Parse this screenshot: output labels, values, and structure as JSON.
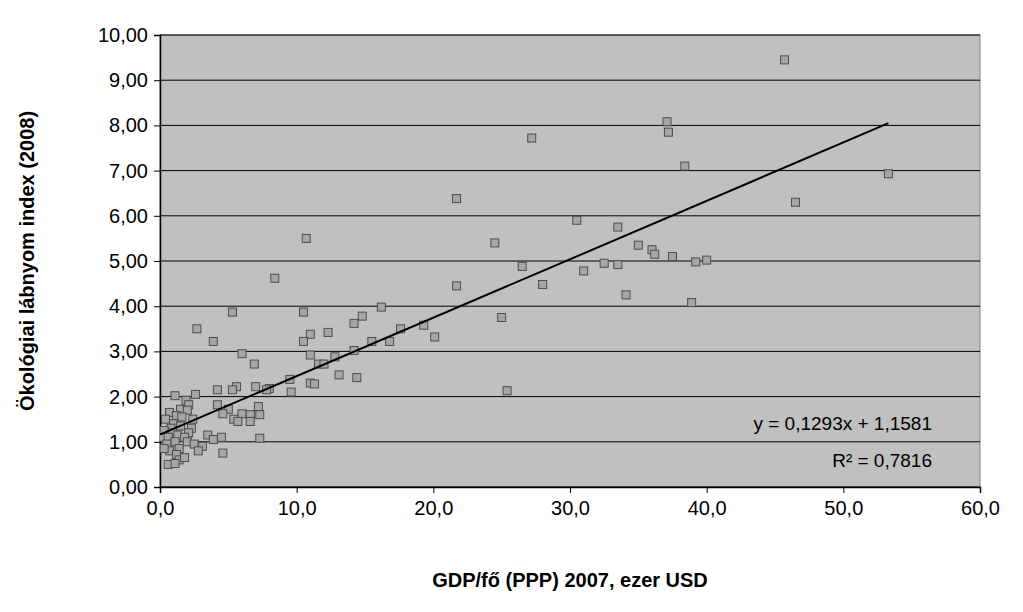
{
  "chart_data": {
    "type": "scatter",
    "x_label": "GDP/fő (PPP) 2007, ezer USD",
    "y_label": "Ökológiai lábnyom index (2008)",
    "annotations": [
      "y = 0,1293x + 1,1581",
      "R² = 0,7816"
    ],
    "xlim": [
      0,
      60
    ],
    "ylim": [
      0,
      10
    ],
    "xticks": [
      {
        "value": 0,
        "label": "0,0"
      },
      {
        "value": 10,
        "label": "10,0"
      },
      {
        "value": 20,
        "label": "20,0"
      },
      {
        "value": 30,
        "label": "30,0"
      },
      {
        "value": 40,
        "label": "40,0"
      },
      {
        "value": 50,
        "label": "50,0"
      },
      {
        "value": 60,
        "label": "60,0"
      }
    ],
    "yticks": [
      {
        "value": 0,
        "label": "0,00"
      },
      {
        "value": 1,
        "label": "1,00"
      },
      {
        "value": 2,
        "label": "2,00"
      },
      {
        "value": 3,
        "label": "3,00"
      },
      {
        "value": 4,
        "label": "4,00"
      },
      {
        "value": 5,
        "label": "5,00"
      },
      {
        "value": 6,
        "label": "6,00"
      },
      {
        "value": 7,
        "label": "7,00"
      },
      {
        "value": 8,
        "label": "8,00"
      },
      {
        "value": 9,
        "label": "9,00"
      },
      {
        "value": 10,
        "label": "10,00"
      }
    ],
    "grid": "y",
    "series": [
      {
        "type": "scatter",
        "marker": "square",
        "color": "#a6a6a6",
        "x": [
          45.7,
          37.1,
          37.2,
          27.2,
          38.4,
          53.3,
          21.7,
          46.5,
          30.5,
          33.5,
          10.7,
          24.5,
          35.0,
          36.0,
          36.2,
          37.5,
          40.0,
          39.2,
          32.5,
          33.5,
          26.5,
          31.0,
          8.4,
          28.0,
          21.7,
          34.1,
          38.9,
          16.2,
          5.3,
          10.5,
          14.8,
          25.0,
          14.2,
          17.6,
          2.7,
          19.3,
          11.0,
          12.3,
          20.1,
          3.9,
          10.5,
          16.8,
          15.5,
          14.2,
          6.0,
          11.0,
          12.8,
          11.6,
          12.0,
          6.9,
          13.1,
          14.4,
          9.5,
          11.0,
          11.3,
          5.6,
          7.0,
          4.2,
          5.3,
          25.4,
          8.0,
          7.8,
          9.6,
          2.6,
          1.1,
          1.9,
          2.1,
          4.2,
          7.2,
          5.0,
          1.5,
          2.0,
          0.7,
          4.6,
          6.0,
          7.3,
          6.6,
          1.2,
          1.6,
          0.4,
          5.4,
          5.7,
          6.6,
          1.0,
          1.5,
          0.8,
          2.3,
          0.3,
          0.9,
          2.1,
          1.3,
          3.5,
          0.2,
          0.6,
          1.8,
          4.5,
          3.9,
          7.3,
          1.1,
          2.0,
          0.5,
          2.5,
          3.1,
          1.4,
          0.7,
          2.8,
          1.2,
          4.6,
          1.4,
          0.6,
          1.1,
          1.8,
          0.3,
          2.4
        ],
        "values": [
          9.45,
          8.08,
          7.85,
          7.72,
          7.1,
          6.93,
          6.38,
          6.3,
          5.9,
          5.75,
          5.5,
          5.4,
          5.35,
          5.25,
          5.15,
          5.1,
          5.02,
          4.98,
          4.95,
          4.92,
          4.88,
          4.78,
          4.62,
          4.48,
          4.45,
          4.25,
          4.08,
          3.98,
          3.87,
          3.87,
          3.78,
          3.75,
          3.62,
          3.5,
          3.5,
          3.58,
          3.38,
          3.42,
          3.32,
          3.22,
          3.22,
          3.22,
          3.22,
          3.02,
          2.95,
          2.92,
          2.88,
          2.72,
          2.72,
          2.72,
          2.48,
          2.42,
          2.38,
          2.3,
          2.28,
          2.22,
          2.22,
          2.15,
          2.15,
          2.13,
          2.18,
          2.15,
          2.1,
          2.05,
          2.02,
          1.92,
          1.82,
          1.82,
          1.78,
          1.72,
          1.72,
          1.7,
          1.65,
          1.62,
          1.62,
          1.6,
          1.6,
          1.58,
          1.55,
          1.5,
          1.5,
          1.45,
          1.45,
          1.4,
          1.35,
          1.3,
          1.3,
          1.25,
          1.2,
          1.2,
          1.15,
          1.15,
          1.1,
          1.1,
          1.1,
          1.1,
          1.05,
          1.08,
          1.0,
          1.0,
          0.95,
          0.95,
          0.9,
          0.85,
          0.8,
          0.8,
          0.72,
          0.75,
          0.6,
          0.5,
          0.52,
          0.65,
          0.85,
          1.5
        ]
      },
      {
        "type": "line",
        "line_style": "solid",
        "color": "#000000",
        "x": [
          0,
          53.3
        ],
        "values": [
          1.16,
          8.05
        ]
      }
    ]
  }
}
